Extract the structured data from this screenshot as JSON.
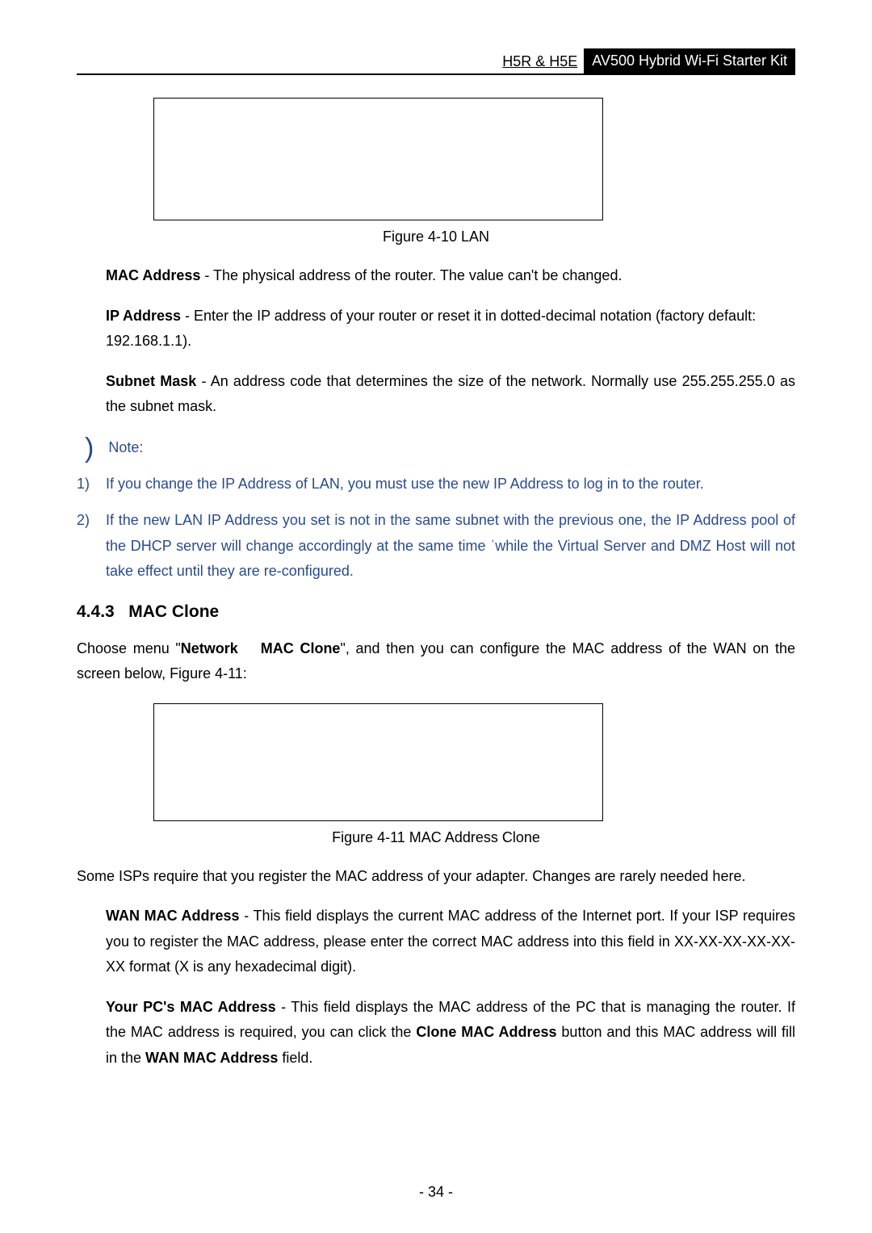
{
  "header": {
    "model": "H5R & H5E",
    "product": "AV500 Hybrid Wi-Fi Starter Kit"
  },
  "figure1": {
    "caption": "Figure 4-10 LAN"
  },
  "mac_address_para": {
    "label": "MAC Address",
    "text": " - The physical address of the router. The value can't be changed."
  },
  "ip_address_para": {
    "label": "IP Address",
    "text": " - Enter the IP address of your router or reset it in dotted-decimal notation (factory default: 192.168.1.1)."
  },
  "subnet_para": {
    "label": "Subnet Mask",
    "text": " - An address code that determines the size of the network. Normally use 255.255.255.0 as the subnet mask."
  },
  "note": {
    "label": "Note:",
    "item1_num": "1)",
    "item1": "If you change the IP Address of LAN, you must use the new IP Address to log in to the router.",
    "item2_num": "2)",
    "item2": "If the new LAN IP Address you set is not in the same subnet with the previous one, the IP Address pool of the DHCP server will change accordingly at the same time ˈwhile the Virtual Server and DMZ Host will not take effect until they are re-configured."
  },
  "section": {
    "number": "4.4.3",
    "title": "MAC Clone"
  },
  "mac_clone_intro": {
    "pre": "Choose menu \"",
    "menu1": "Network",
    "menu2": "MAC Clone",
    "post": "\", and then you can configure the MAC address of the WAN on the screen below, Figure 4-11:"
  },
  "figure2": {
    "caption": "Figure 4-11 MAC Address Clone"
  },
  "isp_para": "Some ISPs require that you register the MAC address of your adapter. Changes are rarely needed here.",
  "wan_mac_para": {
    "label": "WAN MAC Address",
    "text": " - This field displays the current MAC address of the Internet port. If your ISP requires you to register the MAC address, please enter the correct MAC address into this field in XX-XX-XX-XX-XX-XX format (X is any hexadecimal digit)."
  },
  "pc_mac_para": {
    "label": "Your PC's MAC Address",
    "text_a": " - This field displays the MAC address of the PC that is managing the router. If the MAC address is required, you can click the ",
    "bold_a": "Clone MAC Address",
    "text_b": " button and this MAC address will fill in the ",
    "bold_b": "WAN MAC Address",
    "text_c": " field."
  },
  "page_number": "- 34 -",
  "colors": {
    "note_color": "#2a4b8d",
    "text_color": "#000000",
    "header_bg": "#000000"
  }
}
